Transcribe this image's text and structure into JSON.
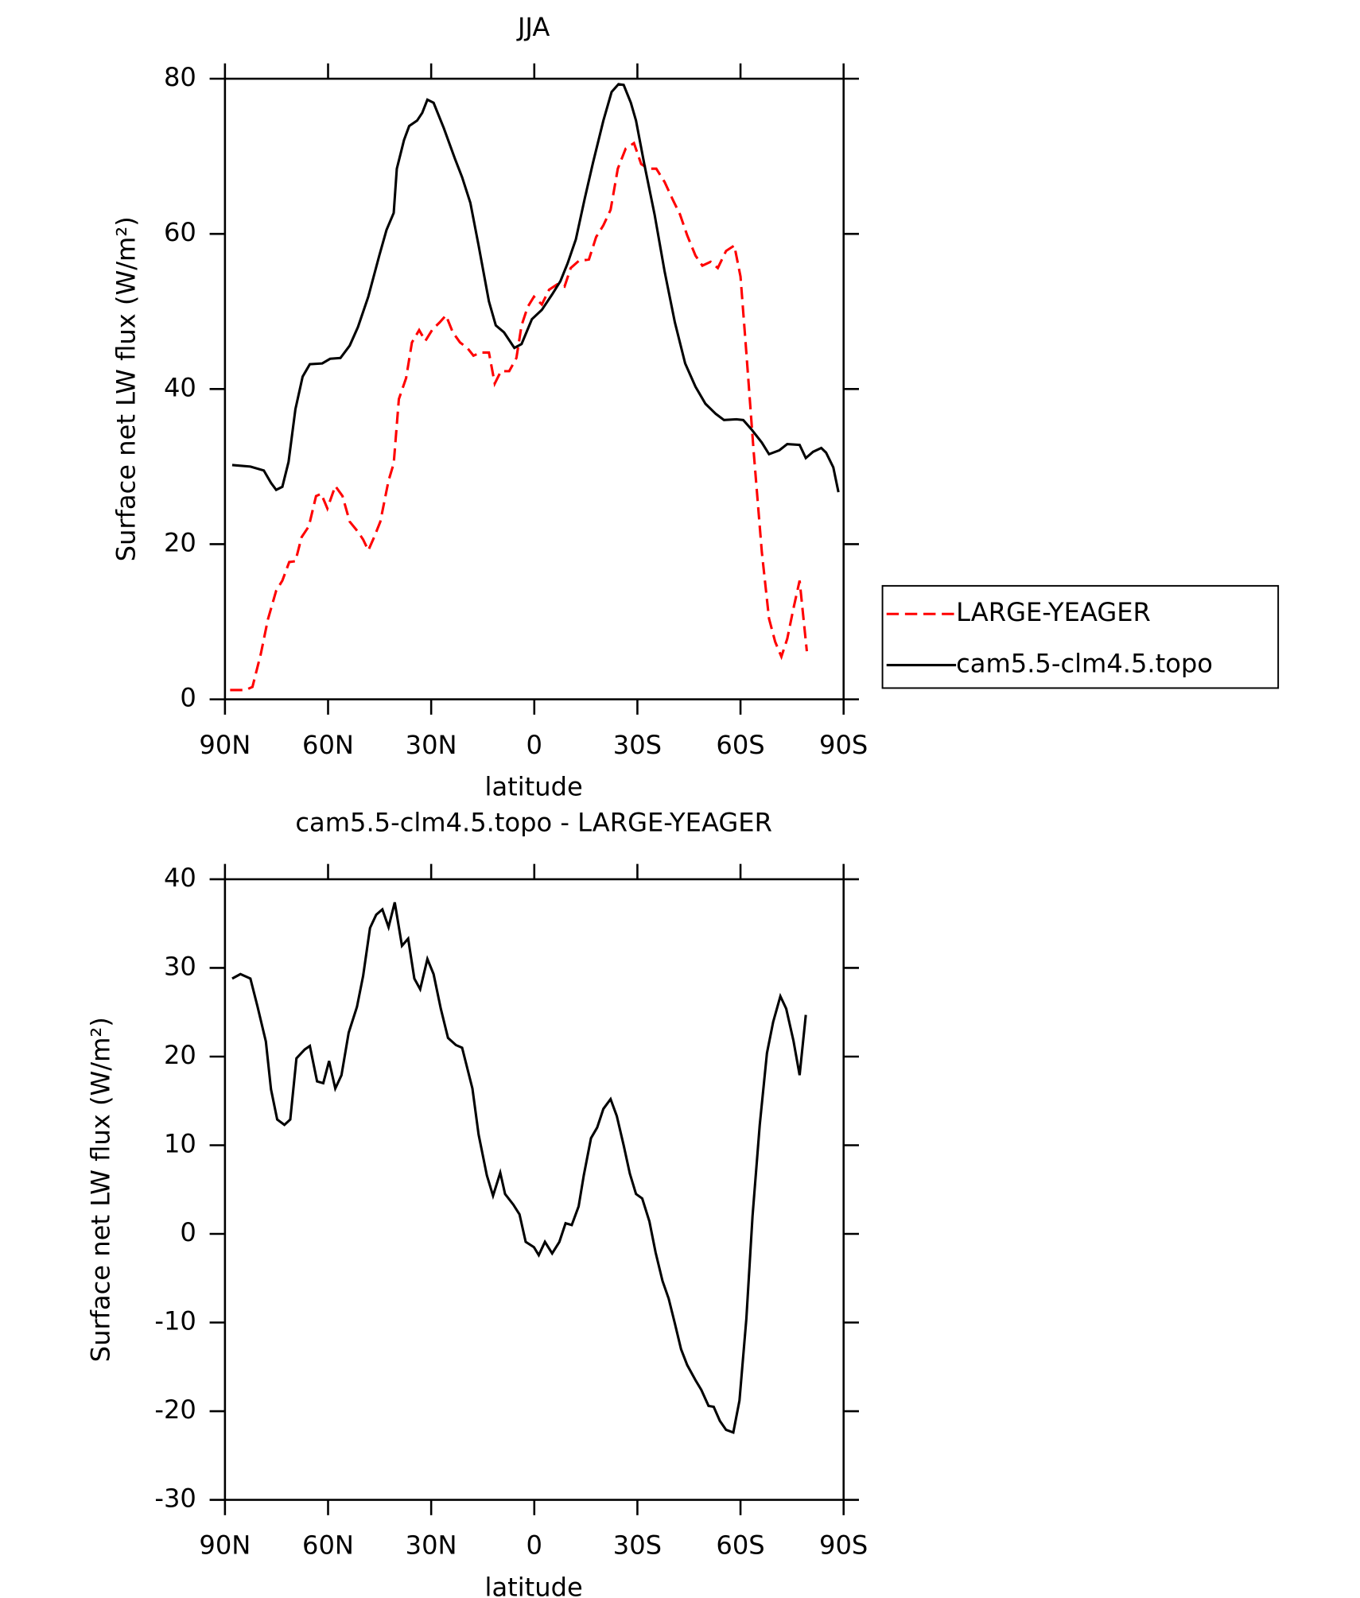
{
  "chart_data": [
    {
      "type": "line",
      "title": "JJA",
      "xlabel": "latitude",
      "ylabel": "Surface net LW flux (W/m²)",
      "xlim": [
        90,
        -90
      ],
      "xticks": [
        {
          "value": 90,
          "label": "90N"
        },
        {
          "value": 60,
          "label": "60N"
        },
        {
          "value": 30,
          "label": "30N"
        },
        0,
        {
          "value": -30,
          "label": "30S"
        },
        {
          "value": -60,
          "label": "60S"
        },
        {
          "value": -90,
          "label": "90S"
        }
      ],
      "ylim": [
        0,
        80
      ],
      "yticks": [
        0,
        20,
        40,
        60,
        80
      ],
      "legend": "right",
      "series": [
        {
          "name": "LARGE-YEAGER",
          "color": "#ff0000",
          "linestyle": "dashed",
          "x": [
            88.5,
            84.0,
            82.0,
            79.6,
            77.5,
            75.1,
            73.3,
            71.3,
            69.5,
            67.7,
            65.6,
            63.5,
            62.0,
            60.2,
            57.9,
            55.8,
            53.7,
            51.3,
            49.8,
            48.3,
            46.6,
            44.8,
            42.4,
            40.9,
            39.4,
            37.3,
            35.6,
            33.5,
            31.7,
            29.6,
            27.5,
            25.7,
            23.7,
            21.6,
            19.5,
            17.7,
            15.6,
            13.2,
            11.5,
            9.7,
            7.3,
            5.2,
            3.7,
            1.9,
            0.1,
            -2.2,
            -4.3,
            -6.7,
            -8.8,
            -10.6,
            -12.9,
            -15.9,
            -18.0,
            -20.1,
            -22.2,
            -24.3,
            -26.6,
            -29.0,
            -31.1,
            -33.2,
            -35.5,
            -37.9,
            -40.3,
            -42.4,
            -44.5,
            -46.9,
            -48.9,
            -51.3,
            -53.4,
            -55.8,
            -58.2,
            -60.0,
            -61.7,
            -63.8,
            -66.2,
            -68.3,
            -70.1,
            -71.9,
            -73.6,
            -75.4,
            -77.2,
            -79.3
          ],
          "values": [
            1.2,
            1.2,
            1.6,
            5.8,
            10.3,
            14.0,
            15.3,
            17.7,
            17.8,
            20.9,
            22.3,
            26.2,
            26.5,
            24.6,
            27.5,
            26.2,
            22.9,
            21.6,
            20.6,
            19.2,
            20.9,
            22.9,
            28.2,
            30.4,
            38.7,
            41.4,
            46.0,
            47.6,
            46.2,
            47.7,
            48.6,
            49.5,
            47.3,
            46.0,
            45.3,
            44.3,
            44.7,
            44.7,
            40.7,
            42.3,
            42.3,
            44.0,
            48.2,
            50.6,
            51.9,
            50.9,
            52.8,
            53.5,
            53.2,
            55.6,
            56.5,
            56.7,
            59.6,
            61.1,
            63.1,
            68.4,
            71.0,
            71.7,
            69.0,
            68.4,
            68.4,
            66.7,
            64.4,
            62.5,
            59.8,
            57.2,
            55.9,
            56.4,
            55.6,
            57.8,
            58.5,
            54.5,
            44.7,
            32.1,
            19.0,
            10.4,
            7.4,
            5.5,
            7.8,
            11.7,
            15.3,
            6.2
          ]
        },
        {
          "name": "cam5.5-clm4.5.topo",
          "color": "#000000",
          "linestyle": "solid",
          "x": [
            87.9,
            82.6,
            78.7,
            76.6,
            75.1,
            73.3,
            71.5,
            69.5,
            67.4,
            65.3,
            61.7,
            59.4,
            56.4,
            53.7,
            51.3,
            48.3,
            45.1,
            43.0,
            40.9,
            40.0,
            37.9,
            36.4,
            34.1,
            32.6,
            31.1,
            29.3,
            26.3,
            23.1,
            21.0,
            18.6,
            16.2,
            13.2,
            11.2,
            8.8,
            5.8,
            3.7,
            0.7,
            -2.2,
            -5.2,
            -7.6,
            -9.7,
            -12.1,
            -14.7,
            -17.1,
            -20.1,
            -22.5,
            -24.5,
            -26.0,
            -28.1,
            -29.6,
            -32.0,
            -35.0,
            -37.9,
            -40.9,
            -43.9,
            -46.9,
            -49.8,
            -52.8,
            -55.2,
            -58.8,
            -60.8,
            -63.2,
            -66.2,
            -68.3,
            -71.3,
            -73.6,
            -77.2,
            -79.0,
            -81.1,
            -83.5,
            -84.9,
            -87.0,
            -88.5
          ],
          "values": [
            30.2,
            30.0,
            29.5,
            27.9,
            27.0,
            27.4,
            30.6,
            37.4,
            41.6,
            43.2,
            43.3,
            43.9,
            44.0,
            45.6,
            48.0,
            51.9,
            57.2,
            60.5,
            62.7,
            68.4,
            72.1,
            73.9,
            74.6,
            75.6,
            77.3,
            76.9,
            73.6,
            69.7,
            67.3,
            64.0,
            58.5,
            51.3,
            48.2,
            47.3,
            45.3,
            45.8,
            49.0,
            50.2,
            52.2,
            53.9,
            56.2,
            59.3,
            64.6,
            69.2,
            74.6,
            78.3,
            79.3,
            79.2,
            76.9,
            74.6,
            69.0,
            62.5,
            55.2,
            48.6,
            43.3,
            40.3,
            38.1,
            36.8,
            36.0,
            36.1,
            36.0,
            34.8,
            33.1,
            31.6,
            32.1,
            32.9,
            32.8,
            31.1,
            31.9,
            32.4,
            31.8,
            29.9,
            26.7
          ]
        }
      ]
    },
    {
      "type": "line",
      "title": "cam5.5-clm4.5.topo - LARGE-YEAGER",
      "xlabel": "latitude",
      "ylabel": "Surface net LW flux (W/m²)",
      "xlim": [
        90,
        -90
      ],
      "xticks": [
        {
          "value": 90,
          "label": "90N"
        },
        {
          "value": 60,
          "label": "60N"
        },
        {
          "value": 30,
          "label": "30N"
        },
        0,
        {
          "value": -30,
          "label": "30S"
        },
        {
          "value": -60,
          "label": "60S"
        },
        {
          "value": -90,
          "label": "90S"
        }
      ],
      "ylim": [
        -30,
        40
      ],
      "yticks": [
        -30,
        -20,
        -10,
        0,
        10,
        20,
        30,
        40
      ],
      "series": [
        {
          "color": "#000000",
          "linestyle": "solid",
          "x": [
            87.9,
            85.5,
            82.6,
            80.5,
            78.1,
            76.6,
            74.8,
            72.7,
            71.0,
            69.2,
            66.8,
            65.3,
            63.2,
            61.4,
            59.7,
            57.9,
            56.1,
            54.0,
            51.6,
            49.8,
            47.8,
            46.0,
            44.2,
            42.4,
            40.6,
            38.5,
            36.7,
            34.9,
            33.2,
            31.1,
            29.3,
            27.2,
            25.1,
            22.8,
            21.0,
            18.0,
            16.2,
            13.8,
            12.0,
            9.9,
            8.5,
            6.1,
            4.3,
            2.5,
            0.1,
            -1.3,
            -3.1,
            -5.2,
            -7.3,
            -9.1,
            -10.9,
            -12.9,
            -14.4,
            -16.5,
            -18.3,
            -20.1,
            -22.2,
            -24.0,
            -26.0,
            -27.8,
            -29.6,
            -31.4,
            -33.5,
            -35.3,
            -37.3,
            -39.1,
            -40.9,
            -42.7,
            -44.5,
            -46.9,
            -48.6,
            -50.7,
            -52.2,
            -54.0,
            -55.8,
            -57.9,
            -59.7,
            -61.7,
            -63.5,
            -65.6,
            -67.7,
            -69.5,
            -71.6,
            -73.3,
            -75.4,
            -77.2,
            -79.0
          ],
          "values": [
            28.8,
            29.3,
            28.8,
            25.6,
            21.7,
            16.3,
            12.9,
            12.3,
            12.9,
            19.8,
            20.8,
            21.2,
            17.2,
            17.0,
            19.5,
            16.4,
            17.9,
            22.7,
            25.6,
            29.1,
            34.5,
            36.0,
            36.6,
            34.6,
            37.4,
            32.5,
            33.3,
            28.8,
            27.6,
            31.0,
            29.3,
            25.4,
            22.1,
            21.3,
            21.0,
            16.4,
            11.2,
            6.6,
            4.3,
            6.9,
            4.5,
            3.3,
            2.2,
            -0.9,
            -1.5,
            -2.4,
            -0.9,
            -2.2,
            -0.9,
            1.2,
            1.0,
            3.1,
            6.6,
            10.8,
            12.0,
            14.1,
            15.2,
            13.3,
            10.0,
            6.8,
            4.5,
            4.0,
            1.4,
            -2.1,
            -5.3,
            -7.3,
            -10.1,
            -13.0,
            -14.8,
            -16.5,
            -17.6,
            -19.4,
            -19.5,
            -21.1,
            -22.1,
            -22.4,
            -18.8,
            -9.6,
            2.0,
            12.3,
            20.4,
            23.9,
            26.8,
            25.4,
            21.8,
            17.9,
            24.7
          ]
        }
      ]
    }
  ]
}
